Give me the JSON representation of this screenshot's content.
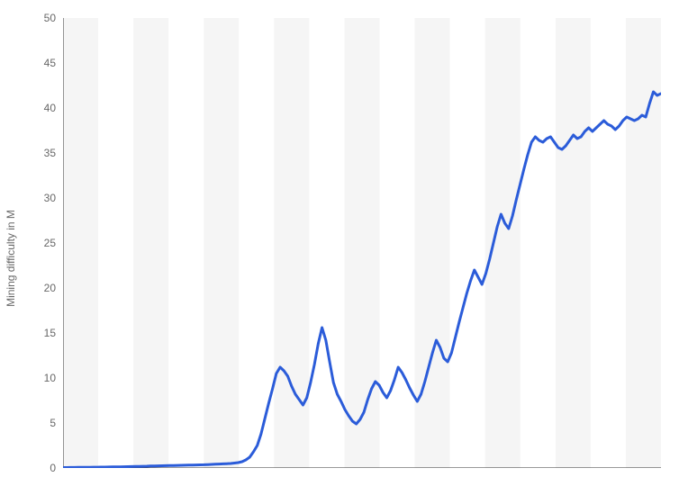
{
  "chart": {
    "type": "line",
    "ylabel": "Mining difficulty in M",
    "label_fontsize": 12,
    "label_color": "#666666",
    "ylim": [
      0,
      50
    ],
    "ytick_step": 5,
    "yticks": [
      0,
      5,
      10,
      15,
      20,
      25,
      30,
      35,
      40,
      45,
      50
    ],
    "background_color": "#ffffff",
    "stripe_color": "#f5f5f5",
    "axis_color": "#333333",
    "line_color": "#2b5cd9",
    "line_width": 3,
    "num_stripes": 17,
    "values": [
      0.05,
      0.05,
      0.06,
      0.06,
      0.07,
      0.07,
      0.08,
      0.08,
      0.09,
      0.09,
      0.1,
      0.1,
      0.11,
      0.12,
      0.12,
      0.13,
      0.14,
      0.15,
      0.16,
      0.17,
      0.18,
      0.19,
      0.2,
      0.22,
      0.23,
      0.24,
      0.25,
      0.26,
      0.27,
      0.28,
      0.29,
      0.3,
      0.31,
      0.32,
      0.33,
      0.34,
      0.35,
      0.36,
      0.38,
      0.4,
      0.42,
      0.44,
      0.46,
      0.48,
      0.5,
      0.55,
      0.6,
      0.7,
      0.9,
      1.2,
      1.8,
      2.5,
      3.8,
      5.5,
      7.2,
      8.8,
      10.5,
      11.2,
      10.8,
      10.2,
      9.1,
      8.2,
      7.6,
      7.0,
      7.8,
      9.5,
      11.5,
      13.8,
      15.6,
      14.2,
      11.8,
      9.5,
      8.2,
      7.4,
      6.5,
      5.8,
      5.2,
      4.9,
      5.4,
      6.2,
      7.6,
      8.8,
      9.6,
      9.2,
      8.4,
      7.8,
      8.6,
      9.8,
      11.2,
      10.6,
      9.8,
      8.9,
      8.1,
      7.4,
      8.2,
      9.6,
      11.2,
      12.8,
      14.2,
      13.4,
      12.2,
      11.8,
      12.8,
      14.5,
      16.2,
      17.8,
      19.4,
      20.8,
      22.0,
      21.2,
      20.4,
      21.6,
      23.2,
      25.0,
      26.8,
      28.2,
      27.2,
      26.6,
      28.0,
      29.8,
      31.5,
      33.2,
      34.8,
      36.2,
      36.8,
      36.4,
      36.2,
      36.6,
      36.8,
      36.2,
      35.6,
      35.4,
      35.8,
      36.4,
      37.0,
      36.6,
      36.8,
      37.4,
      37.8,
      37.4,
      37.8,
      38.2,
      38.6,
      38.2,
      38.0,
      37.6,
      38.0,
      38.6,
      39.0,
      38.8,
      38.6,
      38.8,
      39.2,
      39.0,
      40.5,
      41.8,
      41.4,
      41.6
    ]
  }
}
